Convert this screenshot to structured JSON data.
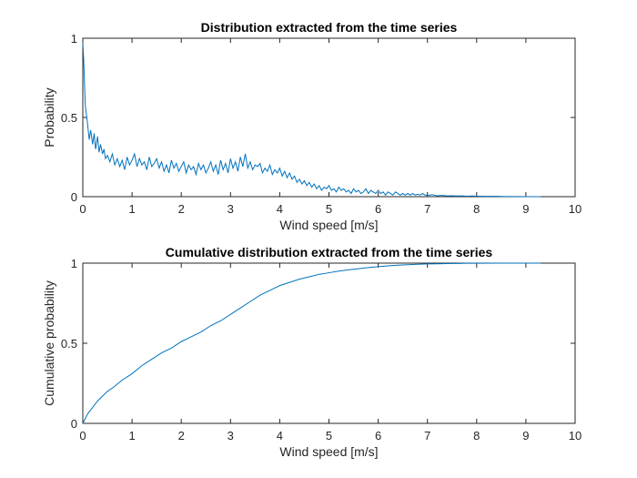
{
  "chart_data": [
    {
      "type": "line",
      "title": "Distribution extracted from the time series",
      "xlabel": "Wind speed [m/s]",
      "ylabel": "Probability",
      "xlim": [
        0,
        10
      ],
      "ylim": [
        0,
        1
      ],
      "xticks": [
        "0",
        "1",
        "2",
        "3",
        "4",
        "5",
        "6",
        "7",
        "8",
        "9",
        "10"
      ],
      "yticks": [
        "0",
        "0.5",
        "1"
      ],
      "grid": false,
      "color": "#0072BD",
      "series": [
        {
          "x": [
            0,
            0.02,
            0.05,
            0.08,
            0.1,
            0.13,
            0.16,
            0.2,
            0.23,
            0.26,
            0.3,
            0.33,
            0.36,
            0.4,
            0.43,
            0.46,
            0.5,
            0.55,
            0.6,
            0.65,
            0.7,
            0.75,
            0.8,
            0.85,
            0.9,
            0.95,
            1.0,
            1.05,
            1.1,
            1.15,
            1.2,
            1.25,
            1.3,
            1.35,
            1.4,
            1.45,
            1.5,
            1.55,
            1.6,
            1.65,
            1.7,
            1.75,
            1.8,
            1.85,
            1.9,
            1.95,
            2.0,
            2.05,
            2.1,
            2.15,
            2.2,
            2.25,
            2.3,
            2.35,
            2.4,
            2.45,
            2.5,
            2.55,
            2.6,
            2.65,
            2.7,
            2.75,
            2.8,
            2.85,
            2.9,
            2.95,
            3.0,
            3.05,
            3.1,
            3.15,
            3.2,
            3.25,
            3.3,
            3.35,
            3.4,
            3.45,
            3.5,
            3.55,
            3.6,
            3.65,
            3.7,
            3.75,
            3.8,
            3.85,
            3.9,
            3.95,
            4.0,
            4.05,
            4.1,
            4.15,
            4.2,
            4.25,
            4.3,
            4.35,
            4.4,
            4.45,
            4.5,
            4.55,
            4.6,
            4.65,
            4.7,
            4.75,
            4.8,
            4.85,
            4.9,
            4.95,
            5.0,
            5.05,
            5.1,
            5.15,
            5.2,
            5.25,
            5.3,
            5.35,
            5.4,
            5.45,
            5.5,
            5.55,
            5.6,
            5.65,
            5.7,
            5.75,
            5.8,
            5.85,
            5.9,
            5.95,
            6.0,
            6.05,
            6.1,
            6.15,
            6.2,
            6.25,
            6.3,
            6.35,
            6.4,
            6.45,
            6.5,
            6.55,
            6.6,
            6.65,
            6.7,
            6.75,
            6.8,
            6.85,
            6.9,
            6.95,
            7.0,
            7.1,
            7.2,
            7.3,
            7.4,
            7.5,
            7.6,
            7.7,
            7.8,
            7.9,
            8.0,
            8.2,
            8.4,
            8.6,
            8.8,
            9.0,
            9.3
          ],
          "y": [
            0.97,
            0.85,
            0.58,
            0.5,
            0.45,
            0.36,
            0.42,
            0.33,
            0.4,
            0.3,
            0.38,
            0.28,
            0.33,
            0.27,
            0.3,
            0.24,
            0.26,
            0.22,
            0.27,
            0.2,
            0.24,
            0.19,
            0.23,
            0.17,
            0.25,
            0.2,
            0.23,
            0.27,
            0.19,
            0.24,
            0.2,
            0.22,
            0.17,
            0.25,
            0.19,
            0.21,
            0.24,
            0.18,
            0.22,
            0.16,
            0.2,
            0.15,
            0.23,
            0.18,
            0.21,
            0.16,
            0.19,
            0.22,
            0.15,
            0.2,
            0.17,
            0.19,
            0.14,
            0.21,
            0.17,
            0.2,
            0.15,
            0.18,
            0.22,
            0.16,
            0.2,
            0.14,
            0.23,
            0.17,
            0.21,
            0.15,
            0.24,
            0.18,
            0.22,
            0.16,
            0.25,
            0.19,
            0.27,
            0.18,
            0.22,
            0.17,
            0.2,
            0.19,
            0.21,
            0.15,
            0.18,
            0.16,
            0.2,
            0.14,
            0.17,
            0.15,
            0.18,
            0.13,
            0.16,
            0.12,
            0.15,
            0.11,
            0.13,
            0.09,
            0.11,
            0.08,
            0.1,
            0.07,
            0.09,
            0.06,
            0.08,
            0.05,
            0.07,
            0.04,
            0.06,
            0.05,
            0.07,
            0.04,
            0.05,
            0.03,
            0.06,
            0.04,
            0.05,
            0.03,
            0.04,
            0.02,
            0.05,
            0.03,
            0.04,
            0.02,
            0.03,
            0.05,
            0.02,
            0.04,
            0.03,
            0.02,
            0.04,
            0.02,
            0.03,
            0.01,
            0.03,
            0.02,
            0.01,
            0.03,
            0.02,
            0.01,
            0.02,
            0.01,
            0.02,
            0.01,
            0.02,
            0.01,
            0.015,
            0.01,
            0.02,
            0.01,
            0.008,
            0.012,
            0.006,
            0.008,
            0.005,
            0.006,
            0.004,
            0.005,
            0.003,
            0.004,
            0.003,
            0.002,
            0.002,
            0.001,
            0.001,
            0.0,
            0.0
          ]
        }
      ]
    },
    {
      "type": "line",
      "title": "Cumulative distribution extracted from the time series",
      "xlabel": "Wind speed [m/s]",
      "ylabel": "Cumulative probability",
      "xlim": [
        0,
        10
      ],
      "ylim": [
        0,
        1
      ],
      "xticks": [
        "0",
        "1",
        "2",
        "3",
        "4",
        "5",
        "6",
        "7",
        "8",
        "9",
        "10"
      ],
      "yticks": [
        "0",
        "0.5",
        "1"
      ],
      "grid": false,
      "color": "#0072BD",
      "series": [
        {
          "x": [
            0,
            0.05,
            0.1,
            0.2,
            0.3,
            0.4,
            0.5,
            0.6,
            0.8,
            1.0,
            1.2,
            1.4,
            1.6,
            1.8,
            2.0,
            2.2,
            2.4,
            2.6,
            2.8,
            3.0,
            3.2,
            3.4,
            3.6,
            3.8,
            4.0,
            4.2,
            4.4,
            4.6,
            4.8,
            5.0,
            5.2,
            5.4,
            5.6,
            5.8,
            6.0,
            6.2,
            6.4,
            6.6,
            6.8,
            7.0,
            7.2,
            7.4,
            7.6,
            7.8,
            8.0,
            8.5,
            9.0,
            9.3
          ],
          "y": [
            0.0,
            0.03,
            0.06,
            0.1,
            0.14,
            0.17,
            0.2,
            0.22,
            0.27,
            0.31,
            0.36,
            0.4,
            0.44,
            0.47,
            0.51,
            0.54,
            0.57,
            0.61,
            0.64,
            0.68,
            0.72,
            0.76,
            0.8,
            0.83,
            0.86,
            0.88,
            0.9,
            0.915,
            0.93,
            0.94,
            0.95,
            0.958,
            0.965,
            0.972,
            0.978,
            0.983,
            0.987,
            0.99,
            0.993,
            0.995,
            0.996,
            0.997,
            0.998,
            0.999,
            0.999,
            1.0,
            1.0,
            1.0
          ]
        }
      ]
    }
  ]
}
